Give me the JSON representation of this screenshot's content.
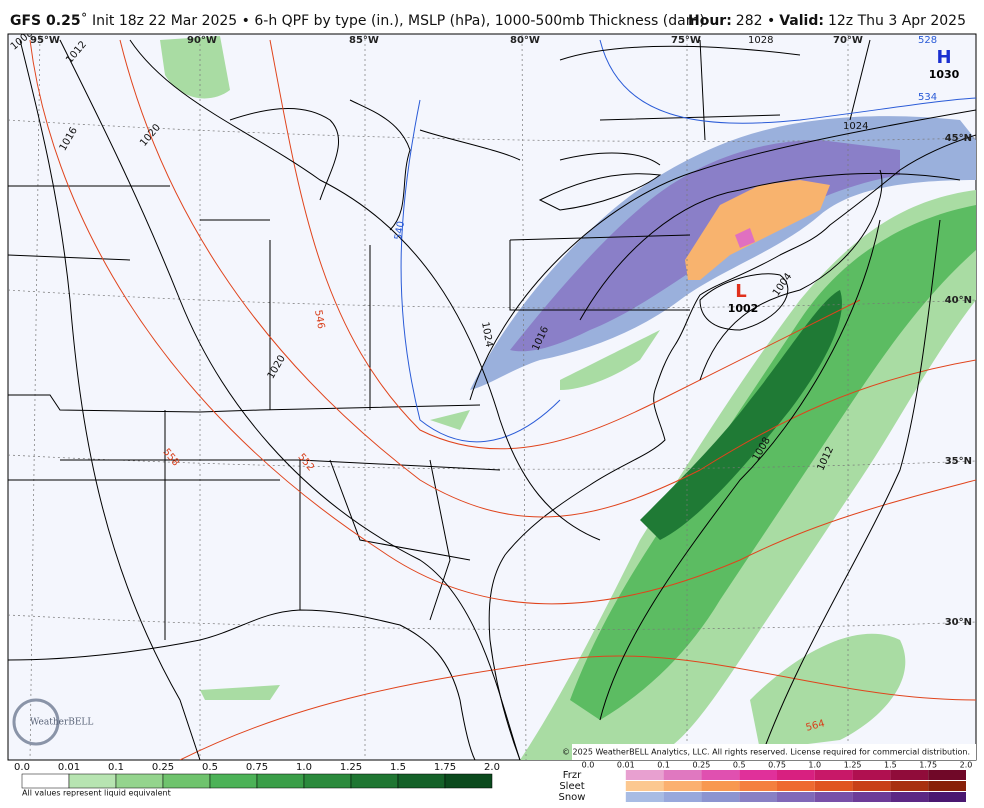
{
  "header": {
    "model": "GFS 0.25",
    "title_rest": "˚ Init 18z 22 Mar 2025 • 6-h QPF by type (in.), MSLP (hPa), 1000-500mb Thickness (dam)",
    "hour_label": "Hour:",
    "hour_value": "282 •",
    "valid_label": "Valid:",
    "valid_value": "12z Thu 3 Apr 2025"
  },
  "map": {
    "longitudes": [
      "95°W",
      "90°W",
      "85°W",
      "80°W",
      "75°W",
      "70°W"
    ],
    "latitudes": [
      "45°N",
      "40°N",
      "35°N",
      "30°N"
    ],
    "isobar_labels": [
      "1008",
      "1012",
      "1016",
      "1020",
      "1024",
      "1028",
      "1004",
      "1016",
      "1020",
      "1024",
      "1008",
      "1012"
    ],
    "thickness_labels": [
      "528",
      "534",
      "540",
      "546",
      "552",
      "558",
      "564"
    ],
    "high": {
      "letter": "H",
      "value": "1030"
    },
    "low": {
      "letter": "L",
      "value": "1002"
    },
    "logo": "WeatherBELL",
    "copyright": "© 2025 WeatherBELL Analytics, LLC. All rights reserved. License required for commercial distribution."
  },
  "legend": {
    "qpf_ticks": [
      "0.0",
      "0.01",
      "0.1",
      "0.25",
      "0.5",
      "0.75",
      "1.0",
      "1.25",
      "1.5",
      "1.75",
      "2.0"
    ],
    "type_ticks": [
      "0.0",
      "0.01",
      "0.1",
      "0.25",
      "0.5",
      "0.75",
      "1.0",
      "1.25",
      "1.5",
      "1.75",
      "2.0"
    ],
    "types": [
      "Frzr",
      "Sleet",
      "Snow"
    ],
    "note": "All values represent liquid equivalent"
  }
}
